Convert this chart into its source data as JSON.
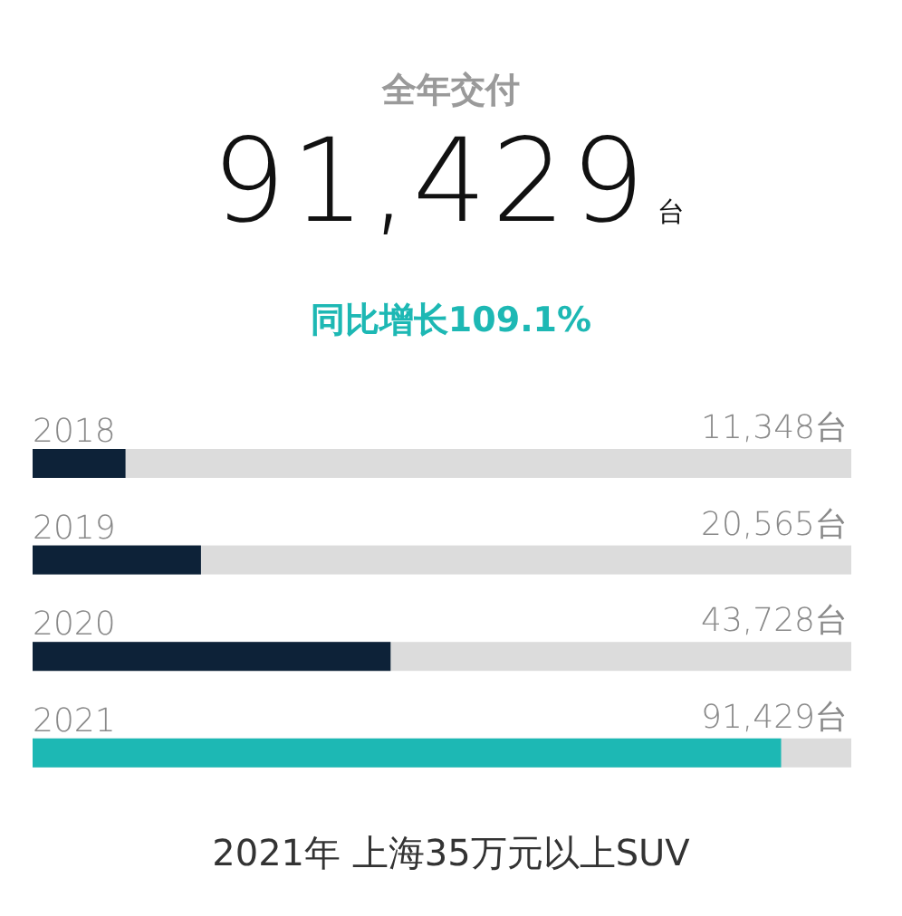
{
  "chart_data": {
    "type": "bar",
    "orientation": "horizontal",
    "title": "全年交付",
    "annotations": [
      "91,429台",
      "同比增长109.1%",
      "2021年 上海35万元以上SUV"
    ],
    "categories": [
      "2018",
      "2019",
      "2020",
      "2021"
    ],
    "values": [
      11348,
      20565,
      43728,
      91429
    ],
    "colors": [
      "#0d2238",
      "#0d2238",
      "#0d2238",
      "#1db8b4"
    ],
    "value_labels": [
      "11,348台",
      "20,565台",
      "43,728台",
      "91,429台"
    ],
    "xlim": [
      0,
      100000
    ],
    "tick_labels": "y"
  }
}
